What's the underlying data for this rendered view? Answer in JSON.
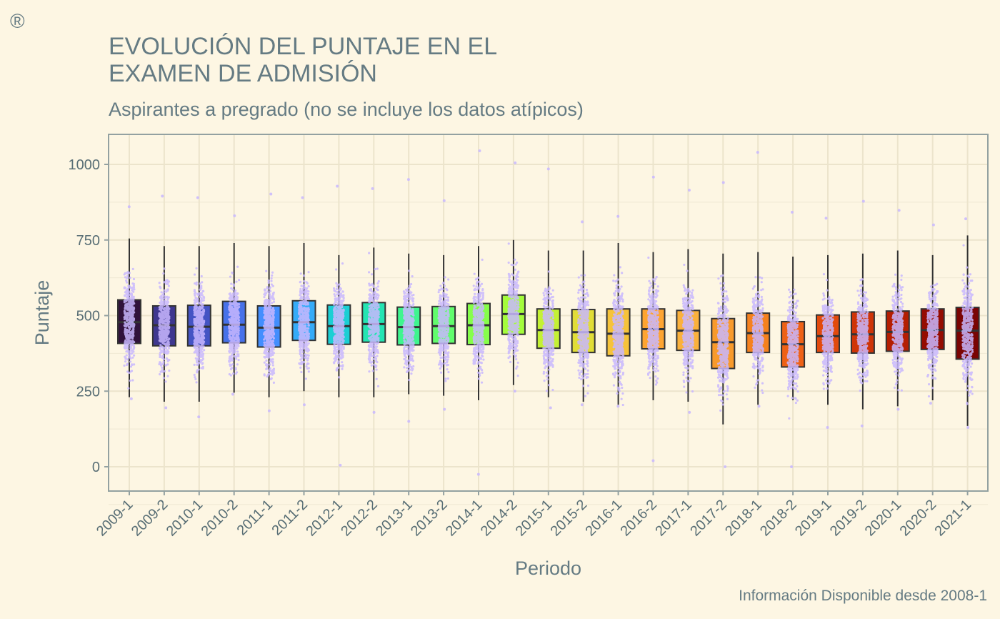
{
  "logo_mark": "®",
  "chart_data": {
    "type": "box",
    "title": [
      "EVOLUCIÓN DEL PUNTAJE EN EL",
      "EXAMEN DE ADMISIÓN"
    ],
    "subtitle": "Aspirantes a pregrado (no se incluye los datos atípicos)",
    "caption": "Información Disponible desde 2008-1",
    "xlabel": "Periodo",
    "ylabel": "Puntaje",
    "ylim": [
      -80,
      1100
    ],
    "yticks": [
      0,
      250,
      500,
      750,
      1000
    ],
    "grid": true,
    "jitter_color": "#c9b8ff",
    "categories": [
      "2009-1",
      "2009-2",
      "2010-1",
      "2010-2",
      "2011-1",
      "2011-2",
      "2012-1",
      "2012-2",
      "2013-1",
      "2013-2",
      "2014-1",
      "2014-2",
      "2015-1",
      "2015-2",
      "2016-1",
      "2016-2",
      "2017-1",
      "2017-2",
      "2018-1",
      "2018-2",
      "2019-1",
      "2019-2",
      "2020-1",
      "2020-2",
      "2021-1"
    ],
    "boxes": [
      {
        "q1": 408,
        "median": 478,
        "q3": 552,
        "lower": 230,
        "upper": 755,
        "color": "#30123b",
        "pts_min": 225,
        "pts_max": 860
      },
      {
        "q1": 400,
        "median": 468,
        "q3": 532,
        "lower": 215,
        "upper": 730,
        "color": "#3e378f",
        "pts_min": 195,
        "pts_max": 895
      },
      {
        "q1": 400,
        "median": 463,
        "q3": 534,
        "lower": 215,
        "upper": 730,
        "color": "#4454c4",
        "pts_min": 165,
        "pts_max": 890
      },
      {
        "q1": 410,
        "median": 470,
        "q3": 547,
        "lower": 245,
        "upper": 740,
        "color": "#4771e9",
        "pts_min": 240,
        "pts_max": 830
      },
      {
        "q1": 396,
        "median": 460,
        "q3": 532,
        "lower": 230,
        "upper": 730,
        "color": "#438efe",
        "pts_min": 185,
        "pts_max": 902
      },
      {
        "q1": 418,
        "median": 478,
        "q3": 549,
        "lower": 250,
        "upper": 740,
        "color": "#35abf8",
        "pts_min": 205,
        "pts_max": 890
      },
      {
        "q1": 405,
        "median": 465,
        "q3": 535,
        "lower": 230,
        "upper": 700,
        "color": "#1bcfd4",
        "pts_min": 5,
        "pts_max": 928
      },
      {
        "q1": 412,
        "median": 472,
        "q3": 543,
        "lower": 230,
        "upper": 725,
        "color": "#24e4b2",
        "pts_min": 180,
        "pts_max": 920
      },
      {
        "q1": 403,
        "median": 462,
        "q3": 528,
        "lower": 240,
        "upper": 705,
        "color": "#3ff58f",
        "pts_min": 150,
        "pts_max": 950
      },
      {
        "q1": 408,
        "median": 465,
        "q3": 530,
        "lower": 235,
        "upper": 700,
        "color": "#61fc6c",
        "pts_min": 190,
        "pts_max": 880
      },
      {
        "q1": 404,
        "median": 468,
        "q3": 540,
        "lower": 220,
        "upper": 730,
        "color": "#86fe4a",
        "pts_min": -25,
        "pts_max": 1045
      },
      {
        "q1": 438,
        "median": 505,
        "q3": 568,
        "lower": 270,
        "upper": 750,
        "color": "#a4fc3b",
        "pts_min": 250,
        "pts_max": 1005
      },
      {
        "q1": 392,
        "median": 452,
        "q3": 522,
        "lower": 230,
        "upper": 715,
        "color": "#c4f134",
        "pts_min": 195,
        "pts_max": 985
      },
      {
        "q1": 378,
        "median": 445,
        "q3": 520,
        "lower": 215,
        "upper": 715,
        "color": "#e1dd37",
        "pts_min": 205,
        "pts_max": 810
      },
      {
        "q1": 367,
        "median": 440,
        "q3": 522,
        "lower": 205,
        "upper": 740,
        "color": "#f6c33a",
        "pts_min": 200,
        "pts_max": 828
      },
      {
        "q1": 390,
        "median": 455,
        "q3": 522,
        "lower": 220,
        "upper": 710,
        "color": "#fea431",
        "pts_min": 20,
        "pts_max": 958
      },
      {
        "q1": 385,
        "median": 450,
        "q3": 517,
        "lower": 215,
        "upper": 720,
        "color": "#fbb13c",
        "pts_min": 180,
        "pts_max": 915
      },
      {
        "q1": 325,
        "median": 412,
        "q3": 490,
        "lower": 140,
        "upper": 705,
        "color": "#f89a2b",
        "pts_min": 0,
        "pts_max": 940
      },
      {
        "q1": 378,
        "median": 442,
        "q3": 508,
        "lower": 205,
        "upper": 710,
        "color": "#f5811e",
        "pts_min": 200,
        "pts_max": 1040
      },
      {
        "q1": 330,
        "median": 405,
        "q3": 480,
        "lower": 220,
        "upper": 695,
        "color": "#ee6116",
        "pts_min": 0,
        "pts_max": 842
      },
      {
        "q1": 378,
        "median": 432,
        "q3": 502,
        "lower": 205,
        "upper": 700,
        "color": "#e24a0d",
        "pts_min": 130,
        "pts_max": 822
      },
      {
        "q1": 376,
        "median": 438,
        "q3": 512,
        "lower": 190,
        "upper": 705,
        "color": "#cf3407",
        "pts_min": 135,
        "pts_max": 878
      },
      {
        "q1": 382,
        "median": 446,
        "q3": 515,
        "lower": 200,
        "upper": 715,
        "color": "#b41e02",
        "pts_min": 190,
        "pts_max": 848
      },
      {
        "q1": 388,
        "median": 452,
        "q3": 522,
        "lower": 220,
        "upper": 700,
        "color": "#950c01",
        "pts_min": 210,
        "pts_max": 800
      },
      {
        "q1": 356,
        "median": 450,
        "q3": 527,
        "lower": 135,
        "upper": 765,
        "color": "#7a0403",
        "pts_min": 130,
        "pts_max": 820
      }
    ]
  }
}
